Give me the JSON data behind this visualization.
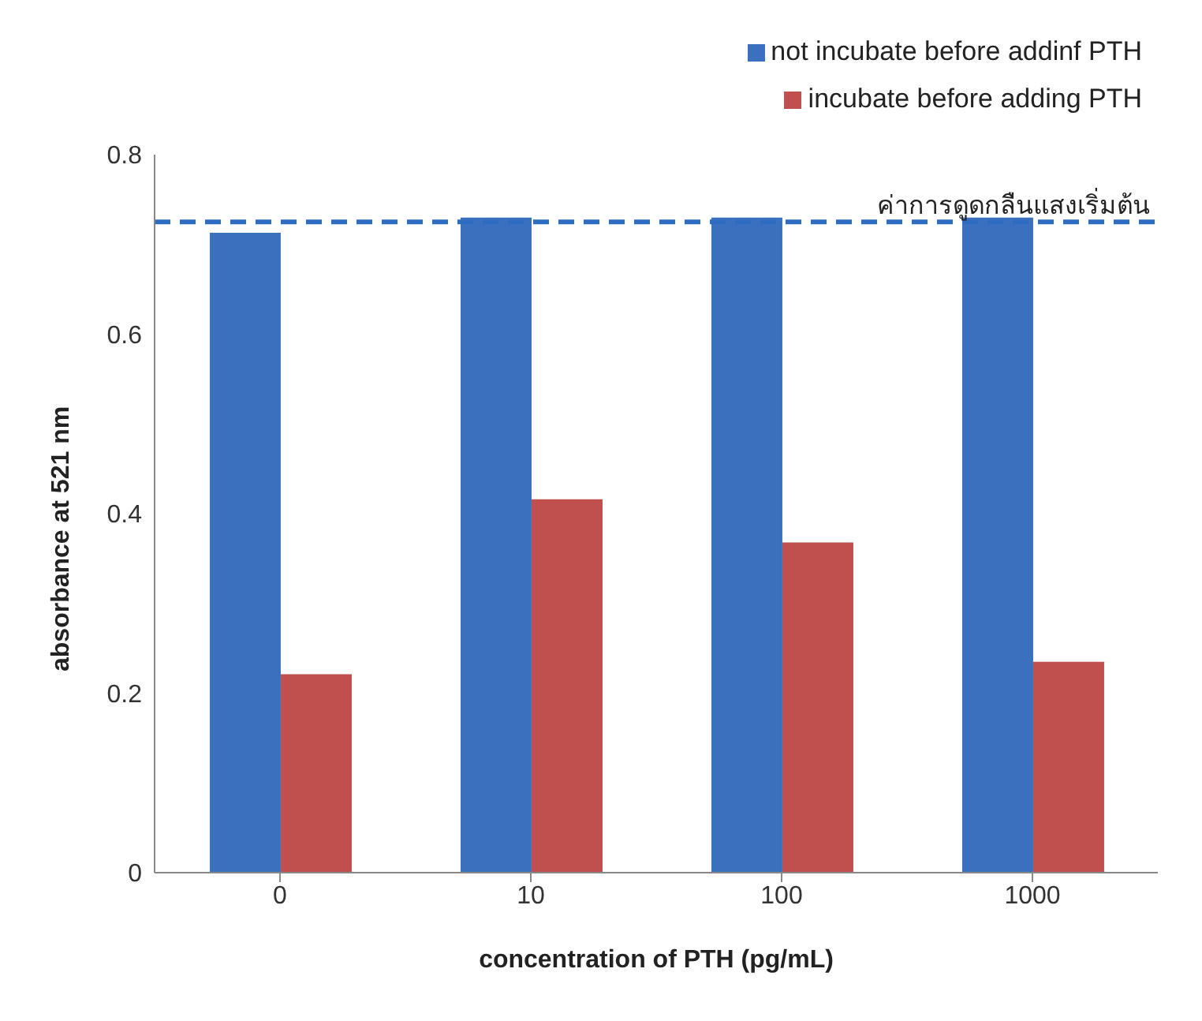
{
  "chart_data": {
    "type": "bar",
    "xlabel": "concentration of PTH (pg/mL)",
    "ylabel": "absorbance at 521 nm",
    "categories": [
      "0",
      "10",
      "100",
      "1000"
    ],
    "series": [
      {
        "name": "not incubate before addinf PTH",
        "color": "#3b70bf",
        "values": [
          0.713,
          0.73,
          0.73,
          0.73
        ]
      },
      {
        "name": "incubate before adding PTH",
        "color": "#c0504d",
        "values": [
          0.221,
          0.416,
          0.368,
          0.235
        ]
      }
    ],
    "ylim": [
      0,
      0.8
    ],
    "yticks": [
      0,
      0.2,
      0.4,
      0.6,
      0.8
    ],
    "grid": false,
    "legend": "top right",
    "ref_lines": [
      {
        "axis": "y",
        "value": 0.725,
        "label": "ค่าการดูดกลืนแสงเริ่มต้น",
        "color": "#2e6cc0",
        "line_style": "dashed"
      }
    ]
  }
}
